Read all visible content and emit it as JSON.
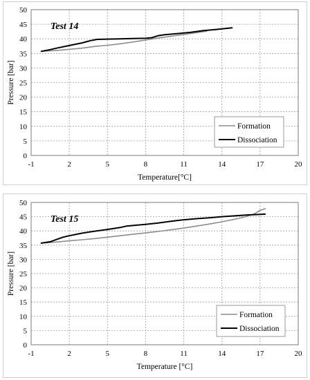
{
  "chart_data": [
    {
      "type": "line",
      "title": "Test 14",
      "xlabel": "Temperature[°C]",
      "ylabel": "Pressure [bar]",
      "xlim": [
        -1,
        20
      ],
      "ylim": [
        0,
        50
      ],
      "xticks": [
        -1,
        2,
        5,
        8,
        11,
        14,
        17,
        20
      ],
      "yticks": [
        0,
        5,
        10,
        15,
        20,
        25,
        30,
        35,
        40,
        45,
        50
      ],
      "grid": "dashed",
      "legend_position": "bottom-right",
      "series": [
        {
          "name": "Formation",
          "color": "#8c8c8c",
          "x": [
            -0.2,
            1.0,
            2.0,
            3.0,
            4.0,
            5.0,
            6.0,
            7.0,
            8.0,
            9.0,
            10.0,
            11.0,
            12.0,
            12.8
          ],
          "y": [
            35.7,
            36.0,
            36.4,
            36.8,
            37.4,
            37.8,
            38.3,
            38.9,
            39.6,
            40.3,
            40.9,
            41.5,
            42.1,
            42.6
          ]
        },
        {
          "name": "Dissociation",
          "color": "#000000",
          "x": [
            -0.2,
            0.5,
            1.0,
            2.0,
            3.0,
            3.7,
            4.2,
            5.0,
            6.0,
            7.0,
            8.0,
            8.5,
            9.0,
            9.5,
            10.5,
            11.5,
            12.5,
            13.5,
            14.8
          ],
          "y": [
            35.7,
            36.3,
            36.8,
            37.7,
            38.6,
            39.4,
            39.8,
            39.9,
            40.0,
            40.1,
            40.2,
            40.4,
            41.1,
            41.4,
            41.8,
            42.2,
            42.8,
            43.2,
            43.8
          ]
        }
      ]
    },
    {
      "type": "line",
      "title": "Test 15",
      "xlabel": "Temperature [°C]",
      "ylabel": "Pressure [bar]",
      "xlim": [
        -1,
        20
      ],
      "ylim": [
        0,
        50
      ],
      "xticks": [
        -1,
        2,
        5,
        8,
        11,
        14,
        17,
        20
      ],
      "yticks": [
        0,
        5,
        10,
        15,
        20,
        25,
        30,
        35,
        40,
        45,
        50
      ],
      "grid": "dashed",
      "legend_position": "bottom-right",
      "series": [
        {
          "name": "Formation",
          "color": "#8c8c8c",
          "x": [
            -0.2,
            1.0,
            2.0,
            3.0,
            4.0,
            5.0,
            6.0,
            7.0,
            8.0,
            9.0,
            10.0,
            11.0,
            12.0,
            13.0,
            14.0,
            15.0,
            15.8,
            16.5,
            17.0,
            17.4
          ],
          "y": [
            35.7,
            36.1,
            36.5,
            36.9,
            37.3,
            37.8,
            38.3,
            38.8,
            39.3,
            39.8,
            40.4,
            41.0,
            41.7,
            42.4,
            43.2,
            44.1,
            44.9,
            45.9,
            47.2,
            47.8
          ]
        },
        {
          "name": "Dissociation",
          "color": "#000000",
          "x": [
            -0.2,
            0.5,
            1.0,
            1.5,
            2.0,
            3.0,
            4.0,
            5.0,
            6.0,
            6.5,
            7.0,
            8.0,
            9.0,
            10.0,
            11.0,
            12.0,
            13.0,
            14.0,
            15.0,
            16.0,
            17.4
          ],
          "y": [
            35.7,
            36.2,
            37.0,
            37.8,
            38.3,
            39.2,
            39.9,
            40.5,
            41.2,
            41.7,
            41.9,
            42.3,
            42.8,
            43.4,
            43.9,
            44.3,
            44.6,
            45.0,
            45.3,
            45.6,
            45.9
          ]
        }
      ]
    }
  ]
}
